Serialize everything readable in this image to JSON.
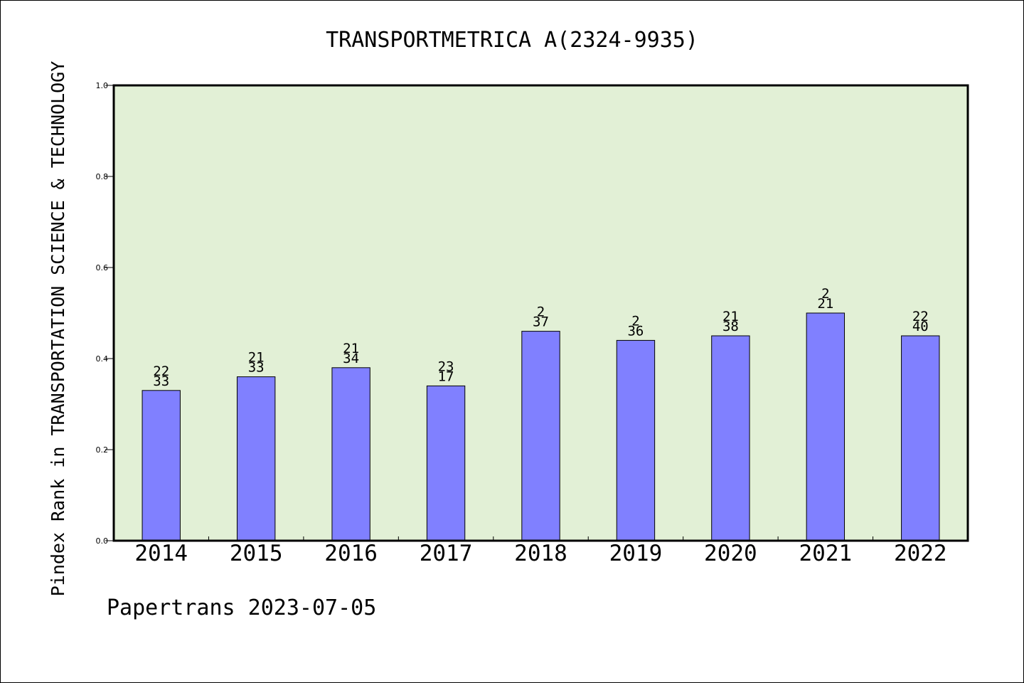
{
  "chart_data": {
    "type": "bar",
    "title": "TRANSPORTMETRICA A(2324-9935)",
    "ylabel": "Pindex Rank in TRANSPORTATION SCIENCE & TECHNOLOGY",
    "xlabel": "",
    "categories": [
      "2014",
      "2015",
      "2016",
      "2017",
      "2018",
      "2019",
      "2020",
      "2021",
      "2022"
    ],
    "values": [
      0.33,
      0.36,
      0.38,
      0.34,
      0.46,
      0.44,
      0.45,
      0.5,
      0.45
    ],
    "label_top": [
      "22",
      "21",
      "21",
      "23",
      "2",
      "2",
      "21",
      "2",
      "22"
    ],
    "label_bottom": [
      "33",
      "33",
      "34",
      "17",
      "37",
      "36",
      "38",
      "21",
      "40"
    ],
    "ylim": [
      0,
      1.0
    ],
    "yticks": [
      "0.0",
      "0.2",
      "0.4",
      "0.6",
      "0.8",
      "1.0"
    ],
    "grid": false,
    "colors": {
      "plot_background": "#e2f0d6",
      "bar_fill": "#8080ff",
      "bar_stroke": "#000000"
    }
  },
  "footer": {
    "source_text": "Papertrans 2023-07-05"
  }
}
